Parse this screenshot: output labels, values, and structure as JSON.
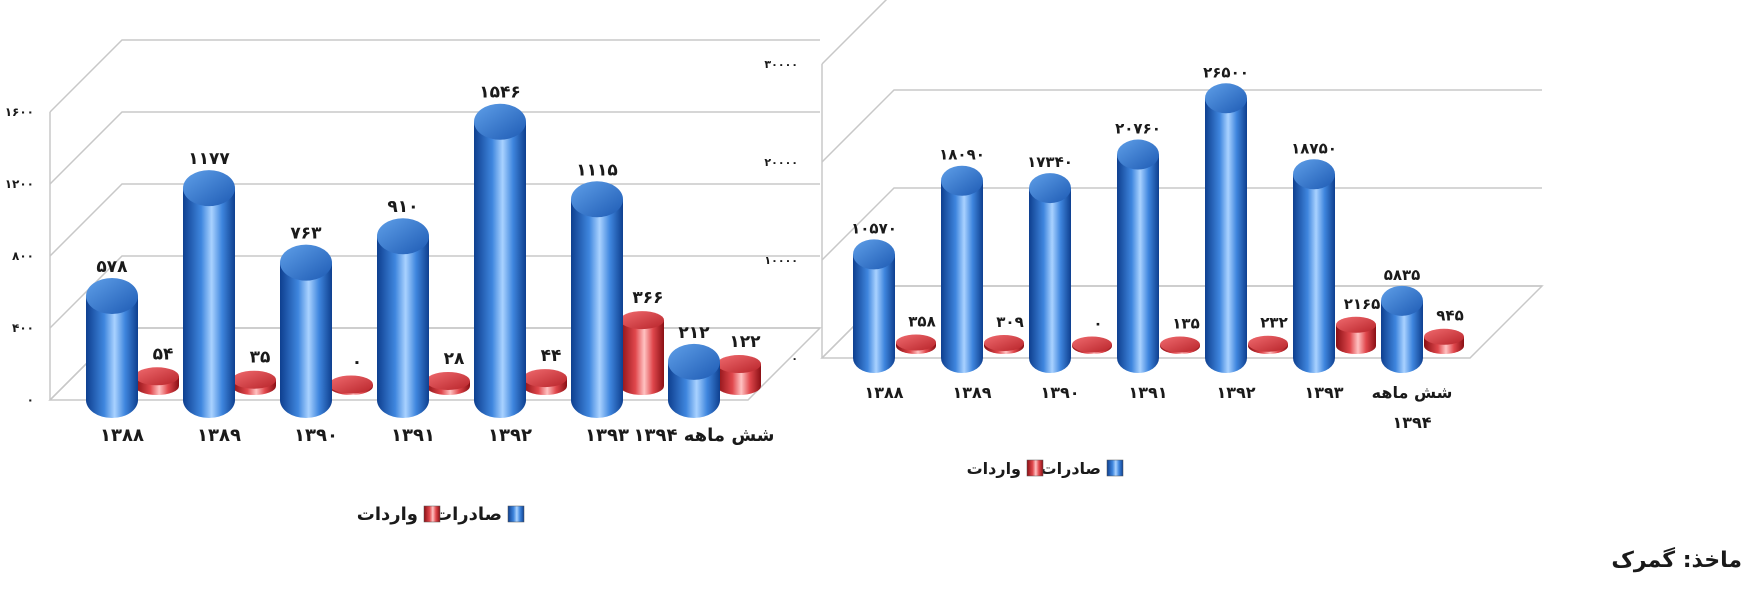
{
  "source": "ماخذ: گمرک",
  "colors": {
    "export": "#2f6fc6",
    "import": "#d9353b",
    "grid": "#c8c8c8"
  },
  "chart_data": [
    {
      "type": "bar",
      "categories": [
        "۱۳۸۸",
        "۱۳۸۹",
        "۱۳۹۰",
        "۱۳۹۱",
        "۱۳۹۲",
        "۱۳۹۳",
        "شش ماهه ۱۳۹۴"
      ],
      "series": [
        {
          "name": "صادرات",
          "values": [
            578,
            1177,
            763,
            910,
            1546,
            1115,
            212
          ],
          "labels": [
            "۵۷۸",
            "۱۱۷۷",
            "۷۶۳",
            "۹۱۰",
            "۱۵۴۶",
            "۱۱۱۵",
            "۲۱۲"
          ]
        },
        {
          "name": "واردات",
          "values": [
            54,
            35,
            0,
            28,
            44,
            366,
            122
          ],
          "labels": [
            "۵۴",
            "۳۵",
            "۰",
            "۲۸",
            "۴۴",
            "۳۶۶",
            "۱۲۲"
          ]
        }
      ],
      "ylim": [
        0,
        1600
      ],
      "yticks": [
        0,
        400,
        800,
        1200,
        1600
      ],
      "ytick_labels": [
        "۰",
        "۴۰۰",
        "۸۰۰",
        "۱۲۰۰",
        "۱۶۰۰"
      ],
      "grid": true,
      "legend": "bottom"
    },
    {
      "type": "bar",
      "categories": [
        "۱۳۸۸",
        "۱۳۸۹",
        "۱۳۹۰",
        "۱۳۹۱",
        "۱۳۹۲",
        "۱۳۹۳",
        "شش ماهه ۱۳۹۴"
      ],
      "category_lines": [
        [
          "۱۳۸۸"
        ],
        [
          "۱۳۸۹"
        ],
        [
          "۱۳۹۰"
        ],
        [
          "۱۳۹۱"
        ],
        [
          "۱۳۹۲"
        ],
        [
          "۱۳۹۳"
        ],
        [
          "شش ماهه",
          "۱۳۹۴"
        ]
      ],
      "series": [
        {
          "name": "صادرات",
          "values": [
            10570,
            18090,
            17340,
            20760,
            26500,
            18750,
            5835
          ],
          "labels": [
            "۱۰۵۷۰",
            "۱۸۰۹۰",
            "۱۷۳۴۰",
            "۲۰۷۶۰",
            "۲۶۵۰۰",
            "۱۸۷۵۰",
            "۵۸۳۵"
          ]
        },
        {
          "name": "واردات",
          "values": [
            358,
            309,
            0,
            135,
            232,
            2165,
            945
          ],
          "labels": [
            "۳۵۸",
            "۳۰۹",
            "۰",
            "۱۳۵",
            "۲۳۲",
            "۲۱۶۵",
            "۹۴۵"
          ]
        }
      ],
      "ylim": [
        0,
        30000
      ],
      "yticks": [
        0,
        10000,
        20000,
        30000
      ],
      "ytick_labels": [
        "۰",
        "۱۰۰۰۰",
        "۲۰۰۰۰",
        "۳۰۰۰۰"
      ],
      "grid": true,
      "legend": "bottom"
    }
  ]
}
